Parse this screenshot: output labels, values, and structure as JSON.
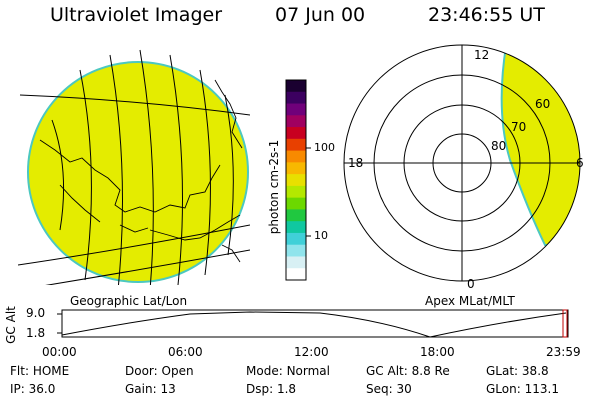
{
  "header": {
    "title": "Ultraviolet Imager",
    "date": "07 Jun 00",
    "time": "23:46:55 UT"
  },
  "colors": {
    "aurora_fill": "#e4ec00",
    "limb": "#4cc8c0",
    "lines": "#000000",
    "background": "#ffffff"
  },
  "left_panel": {
    "caption": "Geographic Lat/Lon"
  },
  "colorbar": {
    "unit_label": "photon cm-2s-1",
    "ticks": [
      "100",
      "10"
    ],
    "colors_top_to_bottom": [
      "#1a0030",
      "#3c0060",
      "#70007a",
      "#a00060",
      "#c80020",
      "#e84000",
      "#f88a00",
      "#f8b800",
      "#e8e000",
      "#b4e800",
      "#6cd800",
      "#20c840",
      "#10c8a0",
      "#40d0d8",
      "#90e4ec",
      "#d8f0f4",
      "#ffffff"
    ]
  },
  "right_panel": {
    "caption": "Apex MLat/MLT",
    "mlt_labels": {
      "top": "12",
      "left": "18",
      "right": "6",
      "bottom": "0"
    },
    "lat_labels": [
      "60",
      "70",
      "80"
    ]
  },
  "altitude_plot": {
    "ylabel": "GC Alt",
    "y_ticks": [
      "9.0",
      "1.8"
    ],
    "x_ticks": [
      "00:00",
      "06:00",
      "12:00",
      "18:00",
      "23:59"
    ]
  },
  "footer": {
    "row1": [
      {
        "label": "Flt:",
        "value": "HOME"
      },
      {
        "label": "Door:",
        "value": "Open"
      },
      {
        "label": "Mode:",
        "value": "Normal"
      },
      {
        "label": "GC Alt:",
        "value": "8.8 Re"
      },
      {
        "label": "GLat:",
        "value": "38.8"
      }
    ],
    "row2": [
      {
        "label": "IP:",
        "value": "36.0"
      },
      {
        "label": "Gain:",
        "value": "13"
      },
      {
        "label": "Dsp:",
        "value": "1.8"
      },
      {
        "label": "Seq:",
        "value": "30"
      },
      {
        "label": "GLon:",
        "value": "113.1"
      }
    ]
  }
}
